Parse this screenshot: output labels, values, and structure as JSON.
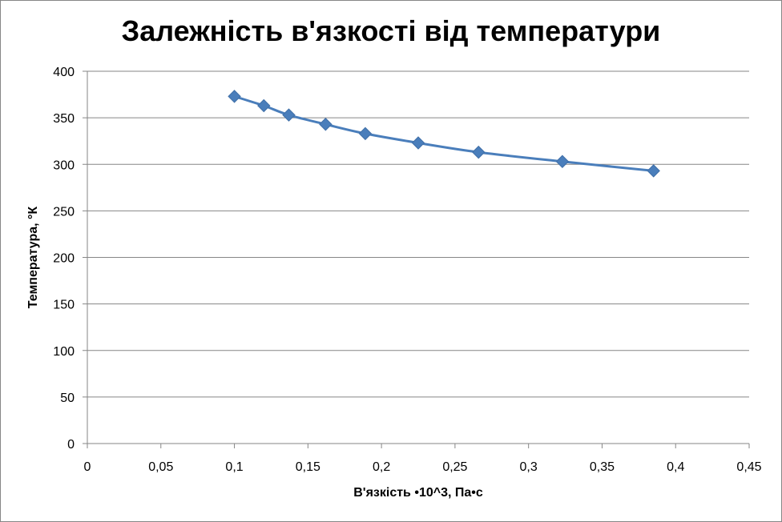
{
  "chart_data": {
    "type": "scatter",
    "title": "Залежність  в'язкості  від температури",
    "xlabel": "В'язкість •10^3, Па•с",
    "ylabel": "Температура, °К",
    "xlim": [
      0,
      0.45
    ],
    "ylim": [
      0,
      400
    ],
    "x_ticks": [
      "0",
      "0,05",
      "0,1",
      "0,15",
      "0,2",
      "0,25",
      "0,3",
      "0,35",
      "0,4",
      "0,45"
    ],
    "y_ticks": [
      "0",
      "50",
      "100",
      "150",
      "200",
      "250",
      "300",
      "350",
      "400"
    ],
    "grid": "horizontal",
    "legend": "none",
    "series": [
      {
        "color": "#4a7ebb",
        "marker": "diamond",
        "line": "smooth",
        "x": [
          0.1,
          0.12,
          0.137,
          0.162,
          0.189,
          0.225,
          0.266,
          0.323,
          0.385
        ],
        "y": [
          373,
          363,
          353,
          343,
          333,
          323,
          313,
          303,
          293
        ]
      }
    ]
  }
}
